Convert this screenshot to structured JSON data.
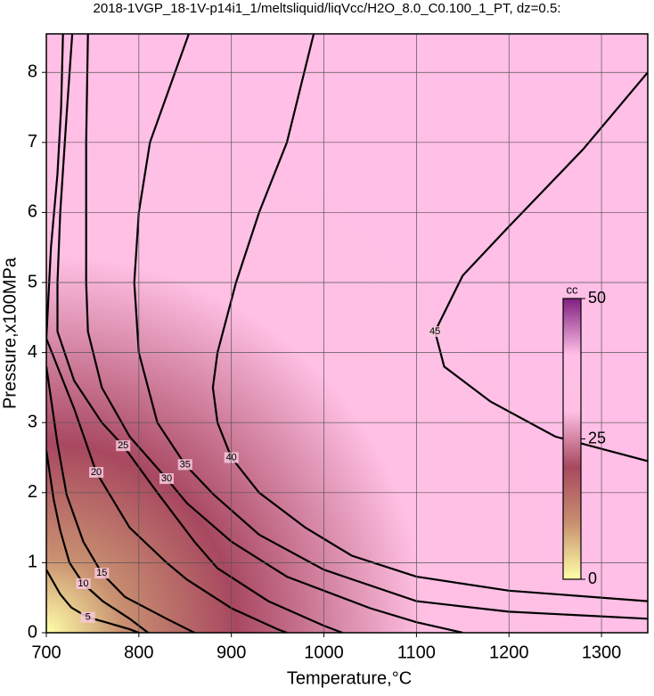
{
  "chart_data": {
    "type": "contour",
    "title": "2018-1VGP_18-1V-p14i1_1/meltsliquid/liqVcc/H2O_8.0_C0.100_1_PT, dz=0.5:",
    "x_label": "Temperature,°C",
    "y_label": "Pressure,x100MPa",
    "xlim": [
      700,
      1350
    ],
    "ylim": [
      0,
      8.55
    ],
    "xticks": [
      700,
      800,
      900,
      1000,
      1100,
      1200,
      1300
    ],
    "yticks": [
      0,
      1,
      2,
      3,
      4,
      5,
      6,
      7,
      8
    ],
    "grid": true,
    "colormap": [
      "#ffffa8",
      "#c89070",
      "#a84860",
      "#ffc0e4",
      "#ffbfe6",
      "#802080"
    ],
    "colorbar": {
      "label": "cc",
      "lim": [
        0,
        50
      ],
      "ticks": [
        0,
        25,
        50
      ]
    },
    "contours": [
      {
        "level": 45,
        "x": [
          1350,
          1250,
          1180,
          1130,
          1120,
          1150,
          1200,
          1280,
          1350
        ],
        "y": [
          2.45,
          2.8,
          3.3,
          3.8,
          4.3,
          5.1,
          5.8,
          6.9,
          8.0
        ]
      },
      {
        "level": 40,
        "x": [
          989,
          960,
          930,
          905,
          885,
          880,
          885,
          900,
          930,
          980,
          1030,
          1100,
          1200,
          1350
        ],
        "y": [
          8.55,
          7.0,
          6.0,
          5.0,
          4.0,
          3.5,
          3.0,
          2.5,
          2.0,
          1.5,
          1.1,
          0.8,
          0.6,
          0.45
        ]
      },
      {
        "level": 35,
        "x": [
          854,
          812,
          800,
          795,
          800,
          820,
          850,
          881,
          930,
          1000,
          1100,
          1200,
          1350
        ],
        "y": [
          8.55,
          7.0,
          6.0,
          5.0,
          4.0,
          3.0,
          2.4,
          1.97,
          1.4,
          0.9,
          0.45,
          0.3,
          0.2
        ]
      },
      {
        "level": 30,
        "x": [
          745,
          743,
          743,
          745,
          760,
          790,
          830,
          852,
          900,
          960,
          1050,
          1100,
          1150
        ],
        "y": [
          8.55,
          7.0,
          5.0,
          4.3,
          3.5,
          2.8,
          2.2,
          1.85,
          1.3,
          0.8,
          0.35,
          0.15,
          0.0
        ]
      },
      {
        "level": 25,
        "x": [
          728,
          722,
          715,
          712,
          712,
          730,
          760,
          783,
          820,
          860,
          885,
          940,
          1000,
          1020
        ],
        "y": [
          8.55,
          7.4,
          6.0,
          5.0,
          4.3,
          3.6,
          3.0,
          2.67,
          2.0,
          1.3,
          0.92,
          0.45,
          0.1,
          0.0
        ]
      },
      {
        "level": 20,
        "x": [
          718,
          716,
          712,
          705,
          700,
          730,
          754,
          790,
          830,
          852,
          900,
          950,
          960
        ],
        "y": [
          8.55,
          7.5,
          6.55,
          5.5,
          4.2,
          3.2,
          2.29,
          1.5,
          1.0,
          0.76,
          0.35,
          0.05,
          0.0
        ]
      },
      {
        "level": 15,
        "x": [
          700,
          712,
          722,
          740,
          760,
          785,
          830,
          860
        ],
        "y": [
          3.8,
          2.7,
          1.97,
          1.3,
          0.85,
          0.51,
          0.2,
          0.0
        ]
      },
      {
        "level": 10,
        "x": [
          700,
          708,
          715,
          725,
          740,
          761,
          790,
          810
        ],
        "y": [
          2.6,
          1.9,
          1.46,
          1.0,
          0.7,
          0.45,
          0.2,
          0.0
        ]
      },
      {
        "level": 5,
        "x": [
          700,
          715,
          727,
          745,
          764,
          790,
          800
        ],
        "y": [
          0.9,
          0.55,
          0.36,
          0.22,
          0.15,
          0.05,
          0.0
        ]
      }
    ]
  }
}
